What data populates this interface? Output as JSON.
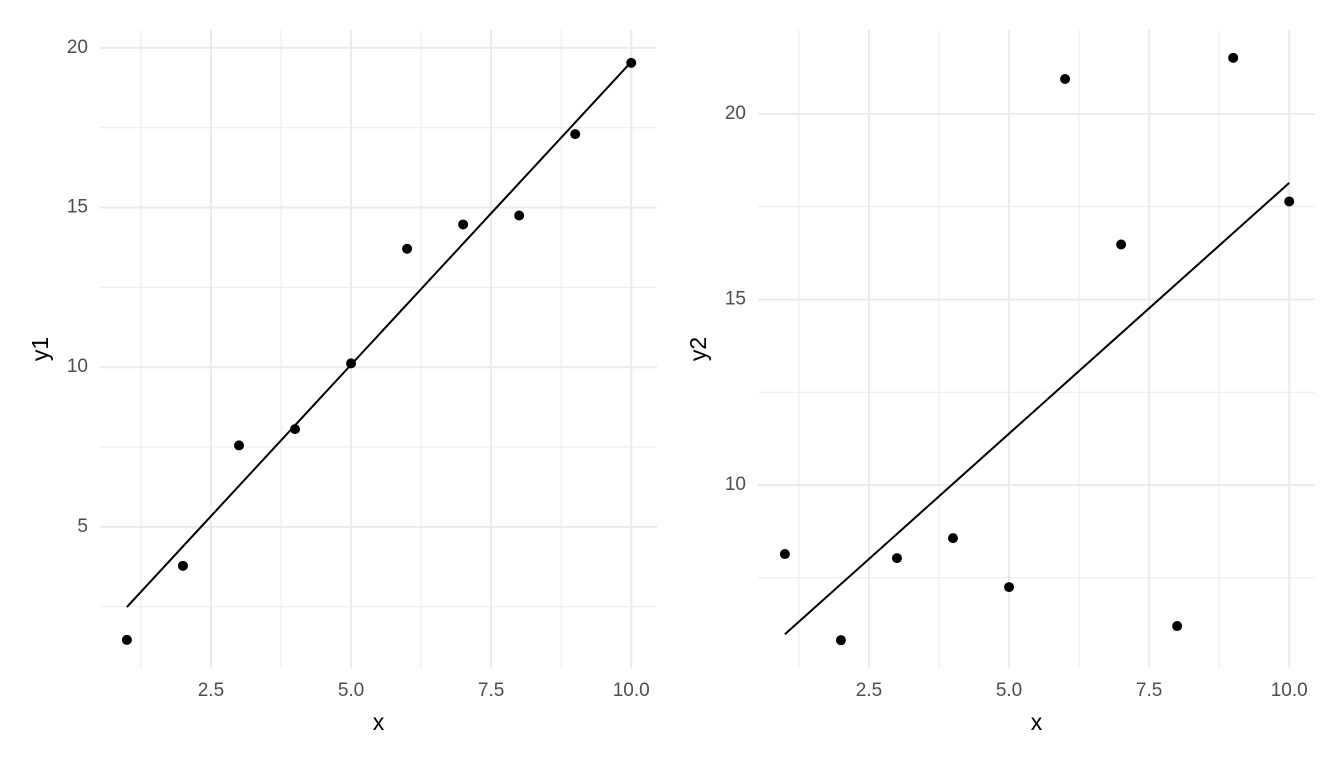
{
  "chart_data": [
    {
      "type": "scatter",
      "xlabel": "x",
      "ylabel": "y1",
      "color": "#000000",
      "line_color": "#000000",
      "x": [
        1,
        2,
        3,
        4,
        5,
        6,
        7,
        8,
        9,
        10
      ],
      "values": [
        1.46,
        3.78,
        7.55,
        8.06,
        10.12,
        13.71,
        14.47,
        14.75,
        17.3,
        19.53
      ],
      "fit": {
        "x": [
          1,
          10
        ],
        "values": [
          2.49,
          19.56
        ]
      },
      "xlim": [
        0.52,
        10.46
      ],
      "ylim": [
        0.58,
        20.56
      ],
      "xticks": [
        {
          "value": 2.5,
          "label": "2.5"
        },
        {
          "value": 5,
          "label": "5.0"
        },
        {
          "value": 7.5,
          "label": "7.5"
        },
        {
          "value": 10,
          "label": "10.0"
        }
      ],
      "yticks": [
        5,
        10,
        15,
        20
      ],
      "minor_xticks": [
        1.25,
        3.75,
        6.25,
        8.75
      ],
      "minor_yticks": [
        2.5,
        7.5,
        12.5,
        17.5
      ],
      "grid": true
    },
    {
      "type": "scatter",
      "xlabel": "x",
      "ylabel": "y2",
      "color": "#000000",
      "line_color": "#000000",
      "x": [
        1,
        2,
        3,
        4,
        5,
        6,
        7,
        8,
        9,
        10
      ],
      "values": [
        8.14,
        5.82,
        8.03,
        8.57,
        7.25,
        20.94,
        16.48,
        6.2,
        21.51,
        17.64
      ],
      "fit": {
        "x": [
          1,
          10
        ],
        "values": [
          5.98,
          18.14
        ]
      },
      "xlim": [
        0.52,
        10.46
      ],
      "ylim": [
        5.07,
        22.26
      ],
      "xticks": [
        {
          "value": 2.5,
          "label": "2.5"
        },
        {
          "value": 5,
          "label": "5.0"
        },
        {
          "value": 7.5,
          "label": "7.5"
        },
        {
          "value": 10,
          "label": "10.0"
        }
      ],
      "yticks": [
        10,
        15,
        20
      ],
      "minor_xticks": [
        1.25,
        3.75,
        6.25,
        8.75
      ],
      "minor_yticks": [
        7.5,
        12.5,
        17.5
      ],
      "grid": true
    }
  ]
}
